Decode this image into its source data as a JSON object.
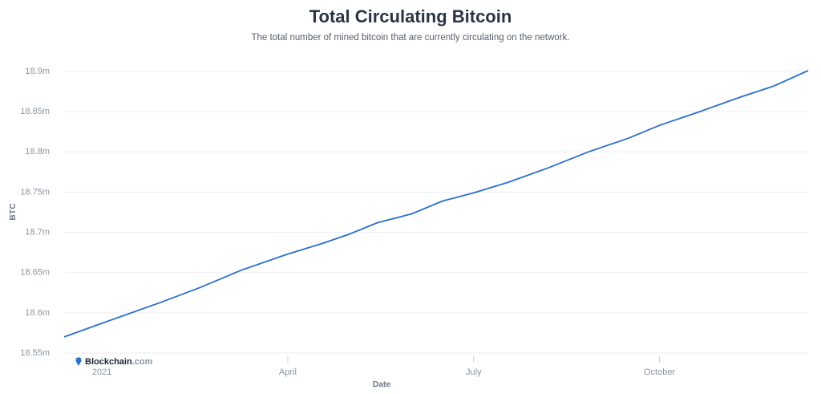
{
  "chart_data": {
    "type": "line",
    "title": "Total Circulating Bitcoin",
    "subtitle": "The total number of mined bitcoin that are currently circulating on the network.",
    "x_label": "Date",
    "y_label": "BTC",
    "brand": "Blockchain",
    "brand_suffix": ".com",
    "x": [
      -0.61,
      0,
      0.95,
      1.6,
      2.25,
      3,
      3.55,
      4,
      4.45,
      5,
      5.5,
      6,
      6.55,
      7.2,
      7.85,
      8.5,
      9,
      9.65,
      10.3,
      10.85,
      11.4
    ],
    "series": [
      {
        "name": "BTC",
        "color": "#2a6fc9",
        "values": [
          18570000,
          18587000,
          18613000,
          18632000,
          18653000,
          18673000,
          18686000,
          18698000,
          18712000,
          18723000,
          18739000,
          18749000,
          18762000,
          18780000,
          18800000,
          18817000,
          18833000,
          18850000,
          18868000,
          18882000,
          18901000
        ]
      }
    ],
    "xlim": [
      -0.61,
      11.4
    ],
    "xticks": [
      {
        "value": 0,
        "label": "2021"
      },
      {
        "value": 3,
        "label": "April"
      },
      {
        "value": 6,
        "label": "July"
      },
      {
        "value": 9,
        "label": "October"
      }
    ],
    "ylim": [
      18550000,
      18900000
    ],
    "yticks": [
      {
        "value": 18550000,
        "label": "18.55m"
      },
      {
        "value": 18600000,
        "label": "18.6m"
      },
      {
        "value": 18650000,
        "label": "18.65m"
      },
      {
        "value": 18700000,
        "label": "18.7m"
      },
      {
        "value": 18750000,
        "label": "18.75m"
      },
      {
        "value": 18800000,
        "label": "18.8m"
      },
      {
        "value": 18850000,
        "label": "18.85m"
      },
      {
        "value": 18900000,
        "label": "18.9m"
      }
    ],
    "grid": true
  }
}
